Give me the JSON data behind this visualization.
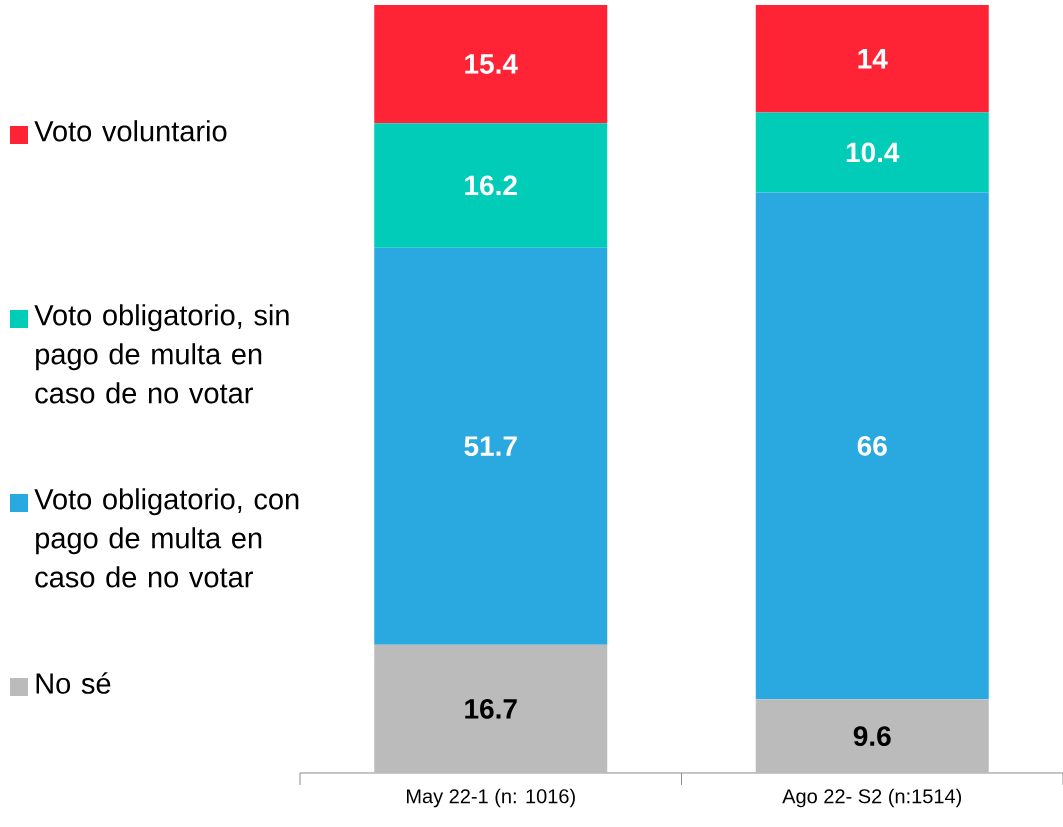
{
  "chart_data": {
    "type": "bar",
    "stacked": true,
    "data_labels": true,
    "legend": "left",
    "categories": [
      "May 22-1 (n: 1016)",
      "Ago 22- S2 (n:1514)"
    ],
    "series": [
      {
        "name": "No sé",
        "color": "#bbbbbb",
        "values": [
          16.7,
          9.6
        ]
      },
      {
        "name": "Voto obligatorio, con pago de multa en caso de no votar",
        "color": "#2aa8e0",
        "values": [
          51.7,
          66
        ]
      },
      {
        "name": "Voto obligatorio, sin pago de multa en caso de no votar",
        "color": "#00ccb8",
        "values": [
          16.2,
          10.4
        ]
      },
      {
        "name": "Voto voluntario",
        "color": "#fe2436",
        "values": [
          15.4,
          14
        ]
      }
    ]
  }
}
